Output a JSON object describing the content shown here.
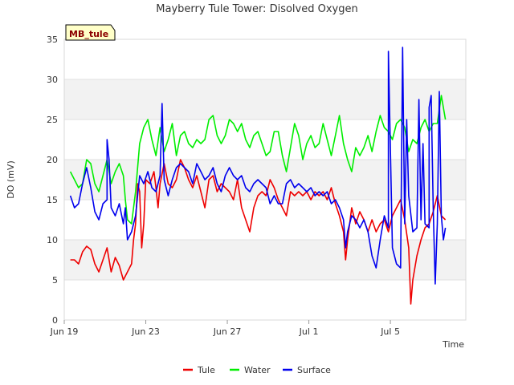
{
  "chart_data": {
    "type": "line",
    "title": "Mayberry Tule Tower: Disolved Oxygen",
    "xlabel": "Time",
    "ylabel": "DO (mV)",
    "xlim": [
      0,
      19.7
    ],
    "ylim": [
      0,
      35
    ],
    "yticks": [
      0,
      5,
      10,
      15,
      20,
      25,
      30,
      35
    ],
    "xticks": [
      {
        "x": 0,
        "label": "Jun 19"
      },
      {
        "x": 4,
        "label": "Jun 23"
      },
      {
        "x": 8,
        "label": "Jun 27"
      },
      {
        "x": 12,
        "label": "Jul 1"
      },
      {
        "x": 16,
        "label": "Jul 5"
      }
    ],
    "station_label": "MB_tule",
    "legend": [
      "Tule",
      "Water",
      "Surface"
    ],
    "series": [
      {
        "name": "Tule",
        "color": "#ee0000",
        "points": [
          [
            0.3,
            7.5
          ],
          [
            0.5,
            7.5
          ],
          [
            0.7,
            7.0
          ],
          [
            0.9,
            8.5
          ],
          [
            1.1,
            9.2
          ],
          [
            1.3,
            8.8
          ],
          [
            1.5,
            7.0
          ],
          [
            1.7,
            6.0
          ],
          [
            1.9,
            7.5
          ],
          [
            2.1,
            9.0
          ],
          [
            2.3,
            6.0
          ],
          [
            2.5,
            7.8
          ],
          [
            2.7,
            6.8
          ],
          [
            2.9,
            5.0
          ],
          [
            3.1,
            6.0
          ],
          [
            3.3,
            7.0
          ],
          [
            3.4,
            10.0
          ],
          [
            3.5,
            12.0
          ],
          [
            3.6,
            17.0
          ],
          [
            3.7,
            16.0
          ],
          [
            3.8,
            9.0
          ],
          [
            3.9,
            12.0
          ],
          [
            4.0,
            17.5
          ],
          [
            4.2,
            17.0
          ],
          [
            4.4,
            18.5
          ],
          [
            4.5,
            16.5
          ],
          [
            4.6,
            14.0
          ],
          [
            4.7,
            17.0
          ],
          [
            4.9,
            19.5
          ],
          [
            5.1,
            17.0
          ],
          [
            5.3,
            16.5
          ],
          [
            5.5,
            17.5
          ],
          [
            5.7,
            20.0
          ],
          [
            5.9,
            19.0
          ],
          [
            6.1,
            17.5
          ],
          [
            6.3,
            16.5
          ],
          [
            6.5,
            18.0
          ],
          [
            6.7,
            16.0
          ],
          [
            6.9,
            14.0
          ],
          [
            7.1,
            17.5
          ],
          [
            7.3,
            18.0
          ],
          [
            7.5,
            16.0
          ],
          [
            7.7,
            17.0
          ],
          [
            7.9,
            16.5
          ],
          [
            8.1,
            16.0
          ],
          [
            8.3,
            15.0
          ],
          [
            8.5,
            17.5
          ],
          [
            8.7,
            14.0
          ],
          [
            8.9,
            12.5
          ],
          [
            9.1,
            11.0
          ],
          [
            9.3,
            14.0
          ],
          [
            9.5,
            15.5
          ],
          [
            9.7,
            16.0
          ],
          [
            9.9,
            15.5
          ],
          [
            10.1,
            17.5
          ],
          [
            10.3,
            16.5
          ],
          [
            10.5,
            15.0
          ],
          [
            10.7,
            14.0
          ],
          [
            10.9,
            13.0
          ],
          [
            11.1,
            16.0
          ],
          [
            11.3,
            15.5
          ],
          [
            11.5,
            16.0
          ],
          [
            11.7,
            15.5
          ],
          [
            11.9,
            16.0
          ],
          [
            12.1,
            15.0
          ],
          [
            12.3,
            16.0
          ],
          [
            12.5,
            15.5
          ],
          [
            12.7,
            16.0
          ],
          [
            12.9,
            15.0
          ],
          [
            13.1,
            16.5
          ],
          [
            13.3,
            14.5
          ],
          [
            13.5,
            13.0
          ],
          [
            13.7,
            11.0
          ],
          [
            13.8,
            7.5
          ],
          [
            13.9,
            10.0
          ],
          [
            14.1,
            14.0
          ],
          [
            14.3,
            12.0
          ],
          [
            14.5,
            13.5
          ],
          [
            14.7,
            12.5
          ],
          [
            14.9,
            11.0
          ],
          [
            15.1,
            12.5
          ],
          [
            15.3,
            11.0
          ],
          [
            15.5,
            12.0
          ],
          [
            15.7,
            12.5
          ],
          [
            15.9,
            11.0
          ],
          [
            16.1,
            13.0
          ],
          [
            16.3,
            14.0
          ],
          [
            16.5,
            15.0
          ],
          [
            16.7,
            12.5
          ],
          [
            16.9,
            9.0
          ],
          [
            17.0,
            2.0
          ],
          [
            17.1,
            5.0
          ],
          [
            17.3,
            8.0
          ],
          [
            17.5,
            10.0
          ],
          [
            17.7,
            11.5
          ],
          [
            17.9,
            12.0
          ],
          [
            18.1,
            13.5
          ],
          [
            18.3,
            15.5
          ],
          [
            18.5,
            13.0
          ],
          [
            18.7,
            12.5
          ]
        ]
      },
      {
        "name": "Water",
        "color": "#00ee00",
        "points": [
          [
            0.3,
            18.5
          ],
          [
            0.5,
            17.5
          ],
          [
            0.7,
            16.5
          ],
          [
            0.9,
            17.0
          ],
          [
            1.1,
            20.0
          ],
          [
            1.3,
            19.5
          ],
          [
            1.5,
            17.0
          ],
          [
            1.7,
            16.0
          ],
          [
            1.9,
            18.0
          ],
          [
            2.1,
            20.0
          ],
          [
            2.3,
            17.0
          ],
          [
            2.5,
            18.5
          ],
          [
            2.7,
            19.5
          ],
          [
            2.9,
            18.0
          ],
          [
            3.0,
            15.0
          ],
          [
            3.1,
            12.5
          ],
          [
            3.3,
            12.0
          ],
          [
            3.5,
            16.0
          ],
          [
            3.7,
            22.0
          ],
          [
            3.9,
            24.0
          ],
          [
            4.1,
            25.0
          ],
          [
            4.3,
            22.5
          ],
          [
            4.5,
            20.5
          ],
          [
            4.7,
            24.0
          ],
          [
            4.9,
            21.0
          ],
          [
            5.1,
            22.5
          ],
          [
            5.3,
            24.5
          ],
          [
            5.5,
            20.5
          ],
          [
            5.7,
            23.0
          ],
          [
            5.9,
            23.5
          ],
          [
            6.1,
            22.0
          ],
          [
            6.3,
            21.5
          ],
          [
            6.5,
            22.5
          ],
          [
            6.7,
            22.0
          ],
          [
            6.9,
            22.5
          ],
          [
            7.1,
            25.0
          ],
          [
            7.3,
            25.5
          ],
          [
            7.5,
            23.0
          ],
          [
            7.7,
            22.0
          ],
          [
            7.9,
            23.0
          ],
          [
            8.1,
            25.0
          ],
          [
            8.3,
            24.5
          ],
          [
            8.5,
            23.5
          ],
          [
            8.7,
            24.5
          ],
          [
            8.9,
            22.5
          ],
          [
            9.1,
            21.5
          ],
          [
            9.3,
            23.0
          ],
          [
            9.5,
            23.5
          ],
          [
            9.7,
            22.0
          ],
          [
            9.9,
            20.5
          ],
          [
            10.1,
            21.0
          ],
          [
            10.3,
            23.5
          ],
          [
            10.5,
            23.5
          ],
          [
            10.7,
            20.5
          ],
          [
            10.9,
            18.5
          ],
          [
            11.1,
            21.5
          ],
          [
            11.3,
            24.5
          ],
          [
            11.5,
            23.0
          ],
          [
            11.7,
            20.0
          ],
          [
            11.9,
            22.0
          ],
          [
            12.1,
            23.0
          ],
          [
            12.3,
            21.5
          ],
          [
            12.5,
            22.0
          ],
          [
            12.7,
            24.5
          ],
          [
            12.9,
            22.5
          ],
          [
            13.1,
            20.5
          ],
          [
            13.3,
            23.0
          ],
          [
            13.5,
            25.5
          ],
          [
            13.7,
            22.0
          ],
          [
            13.9,
            20.0
          ],
          [
            14.1,
            18.5
          ],
          [
            14.3,
            21.5
          ],
          [
            14.5,
            20.5
          ],
          [
            14.7,
            21.5
          ],
          [
            14.9,
            23.0
          ],
          [
            15.1,
            21.0
          ],
          [
            15.3,
            23.5
          ],
          [
            15.5,
            25.5
          ],
          [
            15.7,
            24.0
          ],
          [
            15.9,
            23.5
          ],
          [
            16.1,
            22.5
          ],
          [
            16.3,
            24.5
          ],
          [
            16.5,
            25.0
          ],
          [
            16.7,
            24.0
          ],
          [
            16.9,
            21.0
          ],
          [
            17.1,
            22.5
          ],
          [
            17.3,
            22.0
          ],
          [
            17.5,
            24.0
          ],
          [
            17.7,
            25.0
          ],
          [
            17.9,
            23.5
          ],
          [
            18.1,
            24.5
          ],
          [
            18.3,
            24.5
          ],
          [
            18.5,
            28.0
          ],
          [
            18.7,
            25.0
          ]
        ]
      },
      {
        "name": "Surface",
        "color": "#0000ee",
        "points": [
          [
            0.3,
            15.5
          ],
          [
            0.5,
            14.0
          ],
          [
            0.7,
            14.5
          ],
          [
            0.9,
            17.0
          ],
          [
            1.1,
            19.0
          ],
          [
            1.3,
            16.5
          ],
          [
            1.5,
            13.5
          ],
          [
            1.7,
            12.5
          ],
          [
            1.9,
            14.5
          ],
          [
            2.1,
            15.0
          ],
          [
            2.3,
            14.0
          ],
          [
            2.5,
            13.0
          ],
          [
            2.7,
            14.5
          ],
          [
            2.9,
            12.0
          ],
          [
            3.0,
            14.0
          ],
          [
            3.1,
            10.0
          ],
          [
            3.3,
            11.0
          ],
          [
            3.5,
            13.0
          ],
          [
            3.7,
            18.0
          ],
          [
            3.9,
            17.0
          ],
          [
            4.1,
            18.5
          ],
          [
            4.3,
            16.5
          ],
          [
            4.5,
            16.0
          ],
          [
            4.7,
            18.0
          ],
          [
            4.9,
            17.5
          ],
          [
            5.1,
            15.5
          ],
          [
            5.3,
            17.5
          ],
          [
            5.5,
            19.0
          ],
          [
            5.7,
            19.5
          ],
          [
            5.9,
            19.0
          ],
          [
            6.1,
            18.5
          ],
          [
            6.3,
            17.0
          ],
          [
            6.5,
            19.5
          ],
          [
            6.7,
            18.5
          ],
          [
            6.9,
            17.5
          ],
          [
            7.1,
            18.0
          ],
          [
            7.3,
            19.0
          ],
          [
            7.5,
            17.0
          ],
          [
            7.7,
            16.0
          ],
          [
            7.9,
            18.0
          ],
          [
            8.1,
            19.0
          ],
          [
            8.3,
            18.0
          ],
          [
            8.5,
            17.5
          ],
          [
            8.7,
            18.0
          ],
          [
            8.9,
            16.5
          ],
          [
            9.1,
            16.0
          ],
          [
            9.3,
            17.0
          ],
          [
            9.5,
            17.5
          ],
          [
            9.7,
            17.0
          ],
          [
            9.9,
            16.5
          ],
          [
            10.1,
            14.5
          ],
          [
            10.3,
            15.5
          ],
          [
            10.5,
            14.5
          ],
          [
            10.7,
            14.5
          ],
          [
            10.9,
            17.0
          ],
          [
            11.1,
            17.5
          ],
          [
            11.3,
            16.5
          ],
          [
            11.5,
            17.0
          ],
          [
            11.7,
            16.5
          ],
          [
            11.9,
            16.0
          ],
          [
            12.1,
            16.5
          ],
          [
            12.3,
            15.5
          ],
          [
            12.5,
            16.0
          ],
          [
            12.7,
            15.5
          ],
          [
            12.9,
            16.0
          ],
          [
            13.1,
            14.5
          ],
          [
            13.3,
            15.0
          ],
          [
            13.5,
            14.0
          ],
          [
            13.7,
            12.5
          ],
          [
            13.8,
            9.0
          ],
          [
            13.9,
            11.0
          ],
          [
            14.1,
            13.0
          ],
          [
            14.3,
            12.5
          ],
          [
            14.5,
            11.5
          ],
          [
            14.7,
            12.5
          ],
          [
            14.9,
            11.0
          ],
          [
            15.1,
            8.0
          ],
          [
            15.3,
            6.5
          ],
          [
            15.5,
            10.0
          ],
          [
            15.7,
            13.0
          ],
          [
            15.9,
            11.5
          ],
          [
            16.1,
            9.0
          ],
          [
            16.3,
            7.0
          ],
          [
            16.5,
            6.5
          ],
          [
            16.7,
            12.0
          ],
          [
            16.9,
            15.5
          ],
          [
            17.1,
            11.0
          ],
          [
            17.3,
            11.5
          ],
          [
            17.5,
            12.5
          ],
          [
            17.7,
            12.0
          ],
          [
            17.9,
            11.5
          ],
          [
            18.1,
            14.0
          ],
          [
            18.3,
            12.0
          ],
          [
            18.5,
            13.0
          ],
          [
            18.7,
            11.5
          ]
        ],
        "spikes": [
          [
            2.2,
            20.0
          ],
          [
            2.1,
            22.5
          ],
          [
            4.8,
            27.0
          ],
          [
            15.9,
            33.5
          ],
          [
            16.6,
            34.0
          ],
          [
            16.8,
            25.0
          ],
          [
            17.4,
            27.5
          ],
          [
            17.6,
            22.0
          ],
          [
            17.9,
            26.5
          ],
          [
            18.0,
            28.0
          ],
          [
            18.2,
            4.5
          ],
          [
            18.4,
            28.5
          ],
          [
            18.6,
            10.0
          ]
        ]
      }
    ]
  }
}
